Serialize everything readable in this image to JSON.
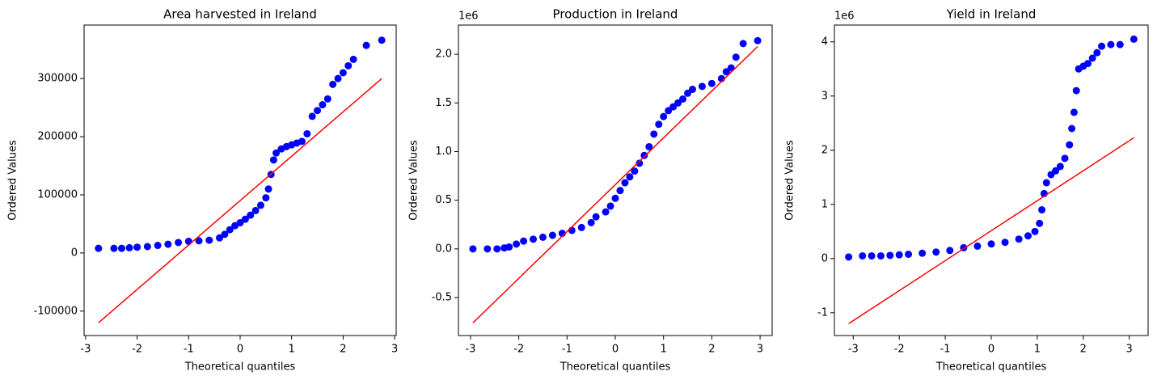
{
  "chart_data": [
    {
      "type": "scatter",
      "title": "Area harvested in Ireland",
      "x_label": "Theoretical quantiles",
      "y_label": "Ordered Values",
      "marker_color": "#0000ff",
      "x": [
        -2.75,
        -2.45,
        -2.3,
        -2.15,
        -2.0,
        -1.8,
        -1.6,
        -1.4,
        -1.2,
        -1.0,
        -0.8,
        -0.6,
        -0.4,
        -0.3,
        -0.2,
        -0.1,
        0.0,
        0.1,
        0.2,
        0.3,
        0.4,
        0.5,
        0.55,
        0.6,
        0.65,
        0.7,
        0.8,
        0.9,
        1.0,
        1.1,
        1.2,
        1.3,
        1.4,
        1.5,
        1.6,
        1.7,
        1.8,
        1.9,
        2.0,
        2.1,
        2.2,
        2.45,
        2.75
      ],
      "values": [
        8000,
        8000,
        8000,
        9000,
        10000,
        11000,
        13000,
        15000,
        18000,
        20000,
        21000,
        22000,
        26000,
        32000,
        40000,
        47000,
        52000,
        58000,
        65000,
        73000,
        82000,
        95000,
        110000,
        135000,
        160000,
        172000,
        179000,
        183000,
        186000,
        189000,
        192000,
        205000,
        235000,
        245000,
        255000,
        265000,
        290000,
        300000,
        310000,
        322000,
        333000,
        357000,
        366000
      ],
      "fit_line": {
        "color": "#ff0000",
        "x": [
          -2.75,
          2.75
        ],
        "values": [
          -120000,
          300000
        ]
      },
      "xlim": [
        -3.03,
        3.03
      ],
      "xticks": [
        -3,
        -2,
        -1,
        0,
        1,
        2,
        3
      ],
      "ylim": [
        -142000,
        392000
      ],
      "yticks": [
        -100000,
        0,
        100000,
        200000,
        300000
      ]
    },
    {
      "type": "scatter",
      "title": "Production in Ireland",
      "x_label": "Theoretical quantiles",
      "y_label": "Ordered Values",
      "offset_label": "1e6",
      "marker_color": "#0000ff",
      "x": [
        -2.95,
        -2.65,
        -2.45,
        -2.3,
        -2.2,
        -2.05,
        -1.9,
        -1.7,
        -1.5,
        -1.3,
        -1.1,
        -0.9,
        -0.7,
        -0.5,
        -0.4,
        -0.2,
        -0.1,
        0.0,
        0.1,
        0.2,
        0.3,
        0.4,
        0.5,
        0.6,
        0.7,
        0.8,
        0.9,
        1.0,
        1.1,
        1.2,
        1.3,
        1.4,
        1.5,
        1.6,
        1.8,
        2.0,
        2.2,
        2.3,
        2.4,
        2.5,
        2.65,
        2.95
      ],
      "values": [
        0.0,
        0.0,
        0.0,
        0.01,
        0.02,
        0.05,
        0.08,
        0.1,
        0.12,
        0.14,
        0.16,
        0.19,
        0.22,
        0.27,
        0.33,
        0.38,
        0.44,
        0.52,
        0.6,
        0.68,
        0.74,
        0.8,
        0.88,
        0.96,
        1.05,
        1.18,
        1.28,
        1.36,
        1.42,
        1.46,
        1.5,
        1.54,
        1.6,
        1.64,
        1.67,
        1.7,
        1.75,
        1.82,
        1.86,
        1.97,
        2.11,
        2.14
      ],
      "fit_line": {
        "color": "#ff0000",
        "x": [
          -2.95,
          2.95
        ],
        "values": [
          -0.76,
          2.08
        ]
      },
      "xlim": [
        -3.25,
        3.25
      ],
      "xticks": [
        -3,
        -2,
        -1,
        0,
        1,
        2,
        3
      ],
      "ylim": [
        -0.89,
        2.3
      ],
      "yticks": [
        -0.5,
        {
          "value": 0,
          "label": "0.0"
        },
        0.5,
        {
          "value": 1,
          "label": "1.0"
        },
        1.5,
        {
          "value": 2,
          "label": "2.0"
        }
      ]
    },
    {
      "type": "scatter",
      "title": "Yield in Ireland",
      "x_label": "Theoretical quantiles",
      "y_label": "Ordered Values",
      "offset_label": "1e6",
      "marker_color": "#0000ff",
      "x": [
        -3.1,
        -2.8,
        -2.6,
        -2.4,
        -2.2,
        -2.0,
        -1.8,
        -1.5,
        -1.2,
        -0.9,
        -0.6,
        -0.3,
        0.0,
        0.3,
        0.6,
        0.8,
        0.95,
        1.05,
        1.1,
        1.15,
        1.2,
        1.3,
        1.4,
        1.5,
        1.6,
        1.7,
        1.75,
        1.8,
        1.85,
        1.9,
        2.0,
        2.1,
        2.2,
        2.3,
        2.4,
        2.6,
        2.8,
        3.1
      ],
      "values": [
        0.03,
        0.05,
        0.05,
        0.05,
        0.06,
        0.07,
        0.08,
        0.1,
        0.12,
        0.15,
        0.2,
        0.23,
        0.27,
        0.3,
        0.36,
        0.42,
        0.5,
        0.65,
        0.9,
        1.2,
        1.4,
        1.55,
        1.62,
        1.7,
        1.85,
        2.1,
        2.4,
        2.7,
        3.1,
        3.5,
        3.55,
        3.6,
        3.7,
        3.8,
        3.92,
        3.95,
        3.95,
        4.05
      ],
      "fit_line": {
        "color": "#ff0000",
        "x": [
          -3.1,
          3.1
        ],
        "values": [
          -1.2,
          2.23
        ]
      },
      "xlim": [
        -3.41,
        3.41
      ],
      "xticks": [
        -3,
        -2,
        -1,
        0,
        1,
        2,
        3
      ],
      "ylim": [
        -1.42,
        4.31
      ],
      "yticks": [
        -1,
        0,
        1,
        2,
        3,
        4
      ]
    }
  ]
}
